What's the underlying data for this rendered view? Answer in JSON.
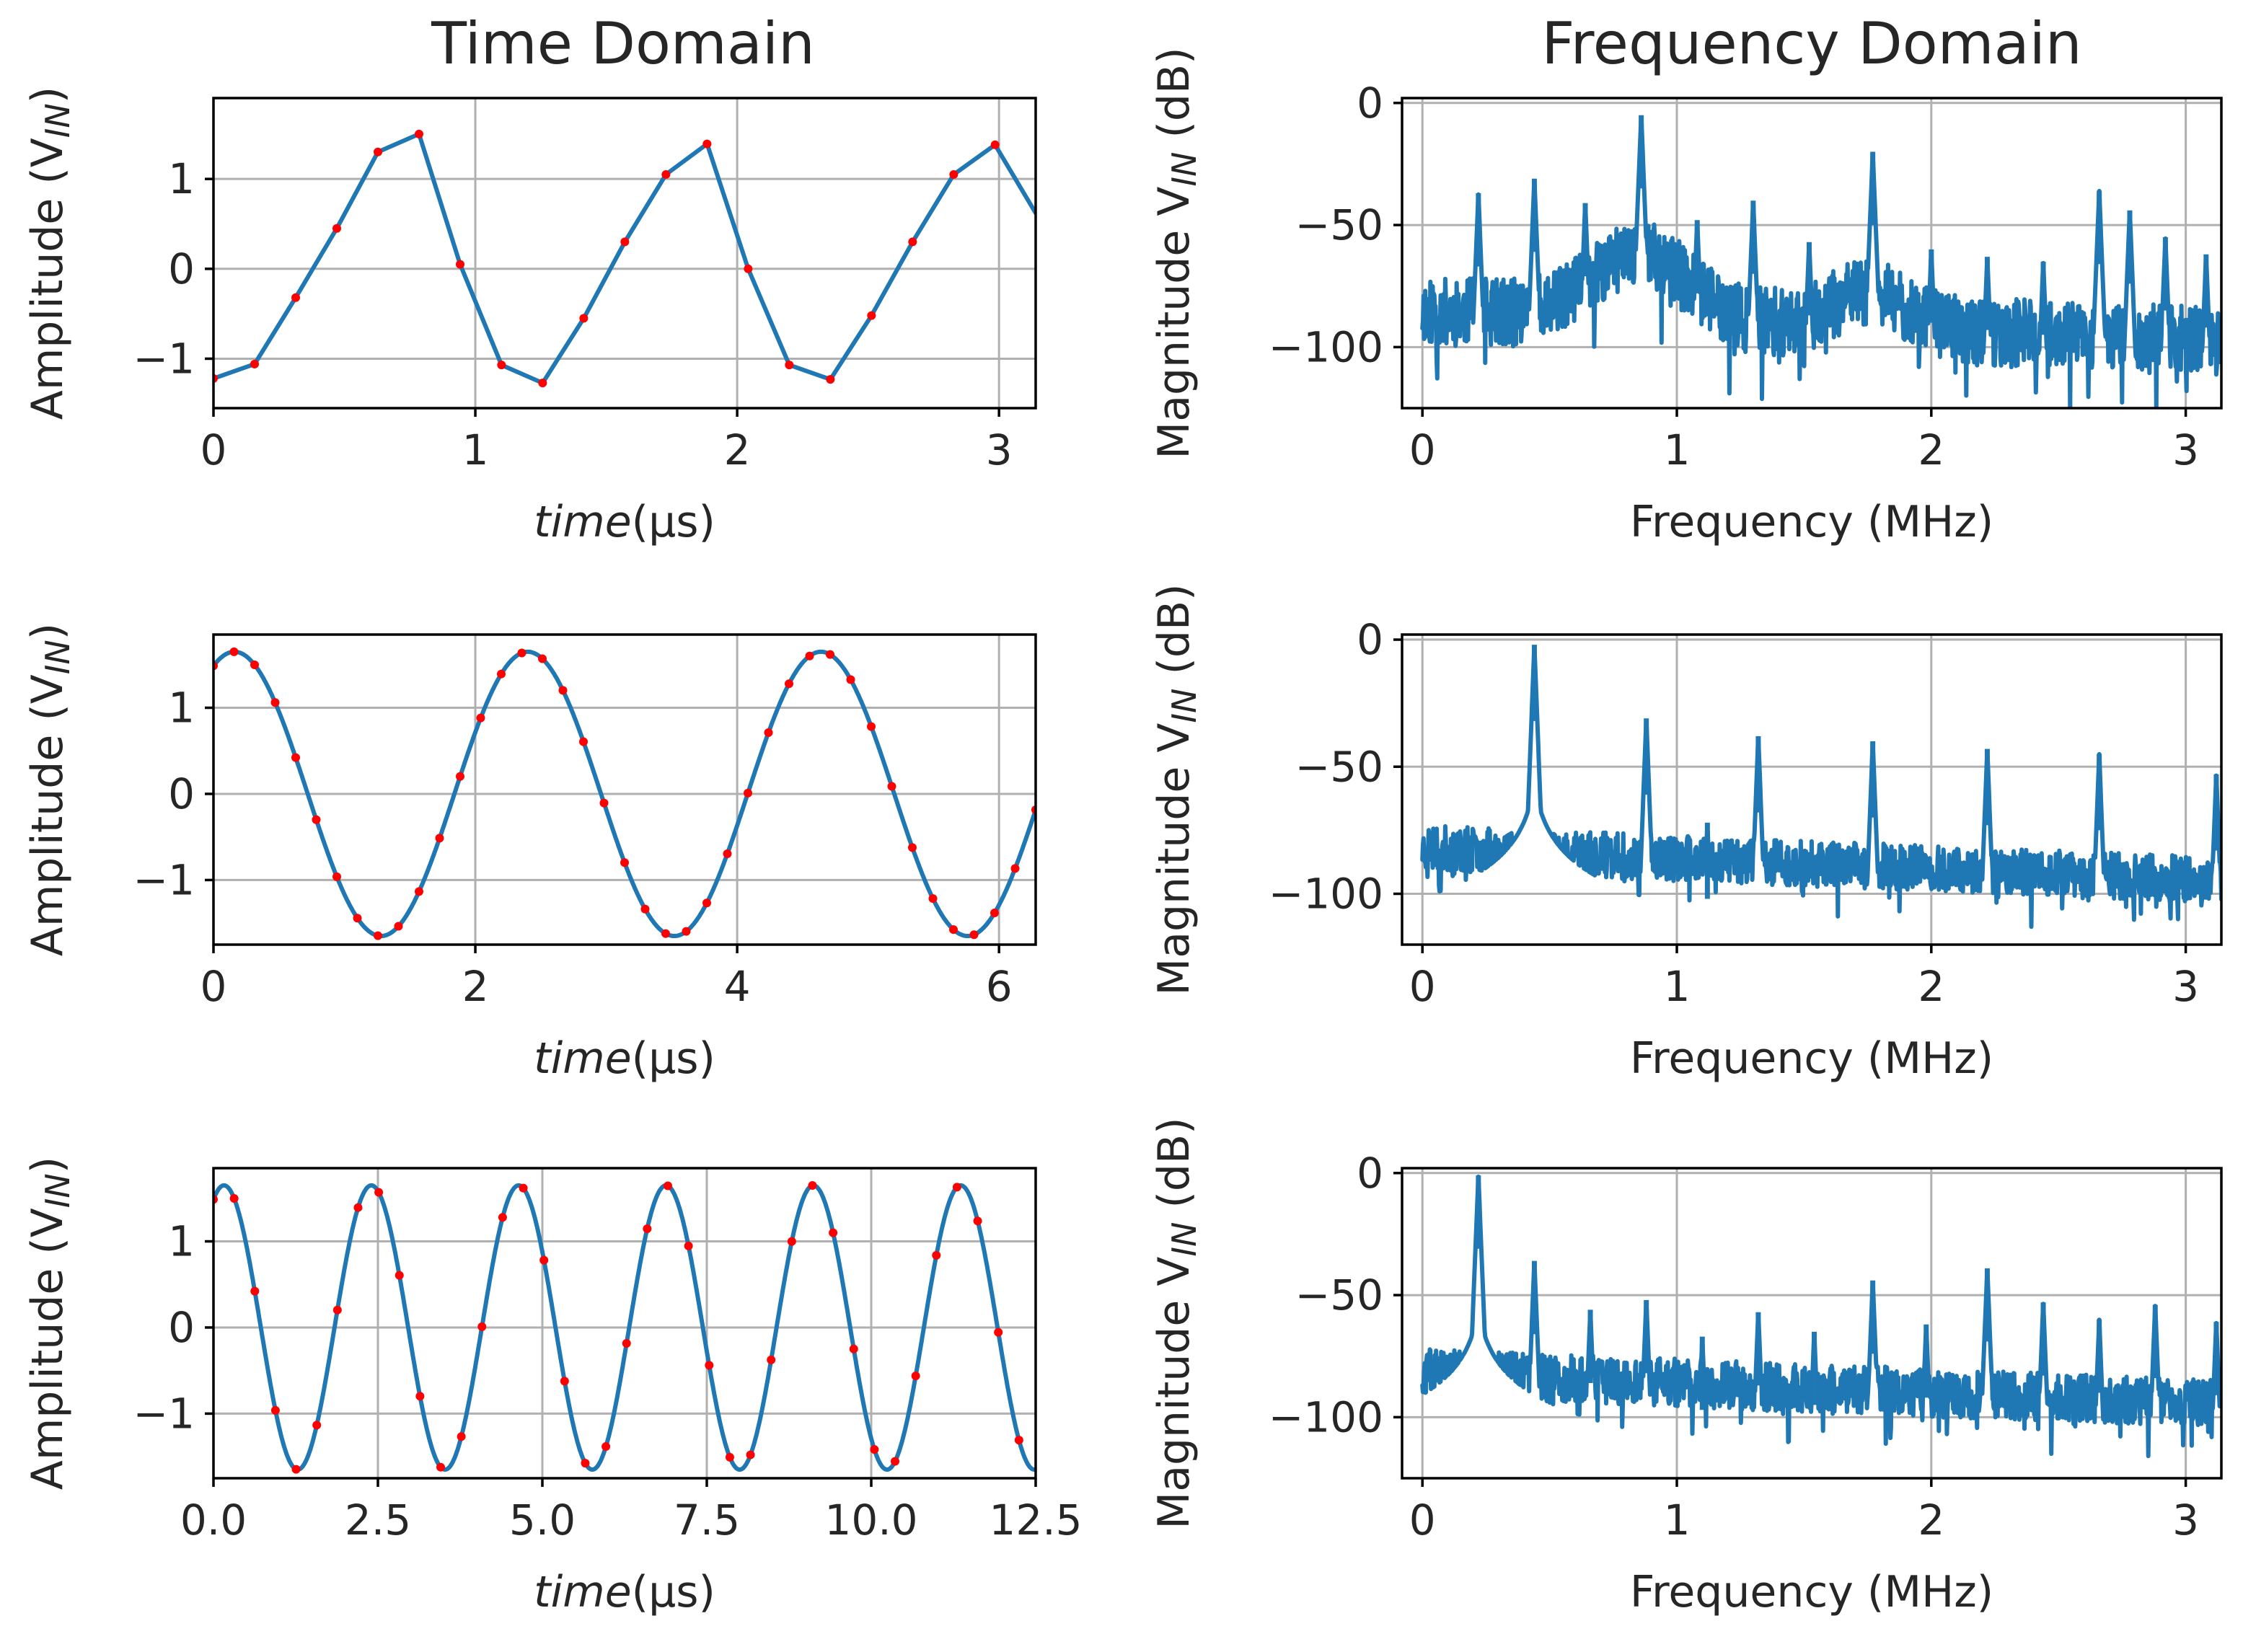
{
  "figure": {
    "left_title": "Time Domain",
    "right_title": "Frequency Domain"
  },
  "colors": {
    "line": "#1f77b4",
    "samples": "#ff0000",
    "grid": "#b0b0b0"
  },
  "chart_data": [
    {
      "type": "line",
      "title": "Time Domain",
      "xlabel_italic": "time",
      "xlabel_unit": "(µs)",
      "ylabel_main": "Amplitude (V",
      "ylabel_sub": "IN",
      "ylabel_close": ")",
      "xlim": [
        0,
        3.14
      ],
      "ylim": [
        -1.55,
        1.9
      ],
      "xticks": [
        0,
        1,
        2,
        3
      ],
      "xtick_labels": [
        "0",
        "1",
        "2",
        "3"
      ],
      "yticks": [
        -1,
        0,
        1
      ],
      "ytick_labels": [
        "−1",
        "0",
        "1"
      ],
      "series": [
        {
          "name": "signal",
          "kind": "line",
          "x": [
            0,
            0.157,
            0.314,
            0.471,
            0.628,
            0.785,
            0.942,
            1.1,
            1.257,
            1.414,
            1.571,
            1.728,
            1.885,
            2.042,
            2.199,
            2.356,
            2.513,
            2.67,
            2.827,
            2.985,
            3.14
          ],
          "y": [
            -1.22,
            -1.06,
            -0.32,
            0.45,
            1.3,
            1.5,
            0.05,
            -1.07,
            -1.27,
            -0.55,
            0.3,
            1.05,
            1.39,
            0.0,
            -1.07,
            -1.23,
            -0.52,
            0.3,
            1.05,
            1.38,
            0.62
          ]
        },
        {
          "name": "samples",
          "kind": "points",
          "x": [
            0,
            0.157,
            0.314,
            0.471,
            0.628,
            0.785,
            0.942,
            1.1,
            1.257,
            1.414,
            1.571,
            1.728,
            1.885,
            2.042,
            2.199,
            2.356,
            2.513,
            2.67,
            2.827,
            2.985
          ],
          "y": [
            -1.22,
            -1.06,
            -0.32,
            0.45,
            1.3,
            1.5,
            0.05,
            -1.07,
            -1.27,
            -0.55,
            0.3,
            1.05,
            1.39,
            0.0,
            -1.07,
            -1.23,
            -0.52,
            0.3,
            1.05,
            1.38
          ]
        }
      ]
    },
    {
      "type": "line",
      "title": "",
      "xlabel_text": "Frequency (MHz)",
      "ylabel_text": "Magnitude V",
      "ylabel_sub": "IN",
      "ylabel_close": " (dB)",
      "xlim": [
        -0.08,
        3.14
      ],
      "ylim": [
        -125,
        2
      ],
      "xticks": [
        0,
        1,
        2,
        3
      ],
      "xtick_labels": [
        "0",
        "1",
        "2",
        "3"
      ],
      "yticks": [
        -100,
        -50,
        0
      ],
      "ytick_labels": [
        "−100",
        "−50",
        "0"
      ],
      "spectrum": {
        "fmin": 0,
        "fmax": 3.14,
        "floor_start": -85,
        "floor_hump": [
          {
            "f": 0.85,
            "level": -62,
            "width": 0.45
          },
          {
            "f": 1.75,
            "level": -78,
            "width": 0.35
          }
        ],
        "noise": 28,
        "seed": 11
      },
      "peaks": [
        {
          "f": 0.22,
          "db": -37
        },
        {
          "f": 0.44,
          "db": -31
        },
        {
          "f": 0.64,
          "db": -41
        },
        {
          "f": 0.86,
          "db": -5
        },
        {
          "f": 1.08,
          "db": -48
        },
        {
          "f": 1.3,
          "db": -40
        },
        {
          "f": 1.52,
          "db": -57
        },
        {
          "f": 1.77,
          "db": -20
        },
        {
          "f": 2.0,
          "db": -60
        },
        {
          "f": 2.22,
          "db": -63
        },
        {
          "f": 2.44,
          "db": -65
        },
        {
          "f": 2.66,
          "db": -36
        },
        {
          "f": 2.78,
          "db": -44
        },
        {
          "f": 2.92,
          "db": -55
        },
        {
          "f": 3.08,
          "db": -62
        }
      ]
    },
    {
      "type": "line",
      "title": "",
      "xlabel_italic": "time",
      "xlabel_unit": "(µs)",
      "ylabel_main": "Amplitude (V",
      "ylabel_sub": "IN",
      "ylabel_close": ")",
      "xlim": [
        0,
        6.28
      ],
      "ylim": [
        -1.75,
        1.85
      ],
      "xticks": [
        0,
        2,
        4,
        6
      ],
      "xtick_labels": [
        "0",
        "2",
        "4",
        "6"
      ],
      "yticks": [
        -1,
        0,
        1
      ],
      "ytick_labels": [
        "−1",
        "0",
        "1"
      ],
      "sine": {
        "amplitude": 1.65,
        "period": 2.24,
        "phase_x_peak": 0.16,
        "sample_step": 0.157
      },
      "series": [
        {
          "name": "signal",
          "kind": "sine"
        },
        {
          "name": "samples",
          "kind": "sine-points"
        }
      ]
    },
    {
      "type": "line",
      "title": "",
      "xlabel_text": "Frequency (MHz)",
      "ylabel_text": "Magnitude V",
      "ylabel_sub": "IN",
      "ylabel_close": " (dB)",
      "xlim": [
        -0.08,
        3.14
      ],
      "ylim": [
        -120,
        2
      ],
      "xticks": [
        0,
        1,
        2,
        3
      ],
      "xtick_labels": [
        "0",
        "1",
        "2",
        "3"
      ],
      "yticks": [
        -100,
        -50,
        0
      ],
      "ytick_labels": [
        "−100",
        "−50",
        "0"
      ],
      "spectrum": {
        "fmin": 0,
        "fmax": 3.14,
        "floor_start": -82,
        "floor_hump": [],
        "noise": 18,
        "seed": 23
      },
      "peaks": [
        {
          "f": 0.44,
          "db": -2,
          "skirt": true
        },
        {
          "f": 0.88,
          "db": -31
        },
        {
          "f": 1.12,
          "db": -72
        },
        {
          "f": 1.32,
          "db": -38
        },
        {
          "f": 1.77,
          "db": -40
        },
        {
          "f": 2.22,
          "db": -43
        },
        {
          "f": 2.66,
          "db": -45
        },
        {
          "f": 3.12,
          "db": -53
        }
      ]
    },
    {
      "type": "line",
      "title": "",
      "xlabel_italic": "time",
      "xlabel_unit": "(µs)",
      "ylabel_main": "Amplitude (V",
      "ylabel_sub": "IN",
      "ylabel_close": ")",
      "xlim": [
        0,
        12.5
      ],
      "ylim": [
        -1.75,
        1.85
      ],
      "xticks": [
        0,
        2.5,
        5,
        7.5,
        10,
        12.5
      ],
      "xtick_labels": [
        "0.0",
        "2.5",
        "5.0",
        "7.5",
        "10.0",
        "12.5"
      ],
      "yticks": [
        -1,
        0,
        1
      ],
      "ytick_labels": [
        "−1",
        "0",
        "1"
      ],
      "sine": {
        "amplitude": 1.65,
        "period": 2.24,
        "phase_x_peak": 0.16,
        "sample_step": 0.314
      },
      "series": [
        {
          "name": "signal",
          "kind": "sine"
        },
        {
          "name": "samples",
          "kind": "sine-points"
        }
      ]
    },
    {
      "type": "line",
      "title": "",
      "xlabel_text": "Frequency (MHz)",
      "ylabel_text": "Magnitude V",
      "ylabel_sub": "IN",
      "ylabel_close": " (dB)",
      "xlim": [
        -0.08,
        3.14
      ],
      "ylim": [
        -125,
        2
      ],
      "xticks": [
        0,
        1,
        2,
        3
      ],
      "xtick_labels": [
        "0",
        "1",
        "2",
        "3"
      ],
      "yticks": [
        -100,
        -50,
        0
      ],
      "ytick_labels": [
        "−100",
        "−50",
        "0"
      ],
      "spectrum": {
        "fmin": 0,
        "fmax": 3.14,
        "floor_start": -82,
        "floor_hump": [],
        "noise": 20,
        "seed": 37
      },
      "peaks": [
        {
          "f": 0.22,
          "db": -1,
          "skirt": true
        },
        {
          "f": 0.44,
          "db": -36
        },
        {
          "f": 0.66,
          "db": -56
        },
        {
          "f": 0.88,
          "db": -52
        },
        {
          "f": 1.1,
          "db": -67
        },
        {
          "f": 1.32,
          "db": -57
        },
        {
          "f": 1.54,
          "db": -65
        },
        {
          "f": 1.77,
          "db": -44
        },
        {
          "f": 1.98,
          "db": -62
        },
        {
          "f": 2.22,
          "db": -39
        },
        {
          "f": 2.44,
          "db": -53
        },
        {
          "f": 2.66,
          "db": -60
        },
        {
          "f": 2.88,
          "db": -54
        },
        {
          "f": 3.12,
          "db": -61
        }
      ]
    }
  ]
}
